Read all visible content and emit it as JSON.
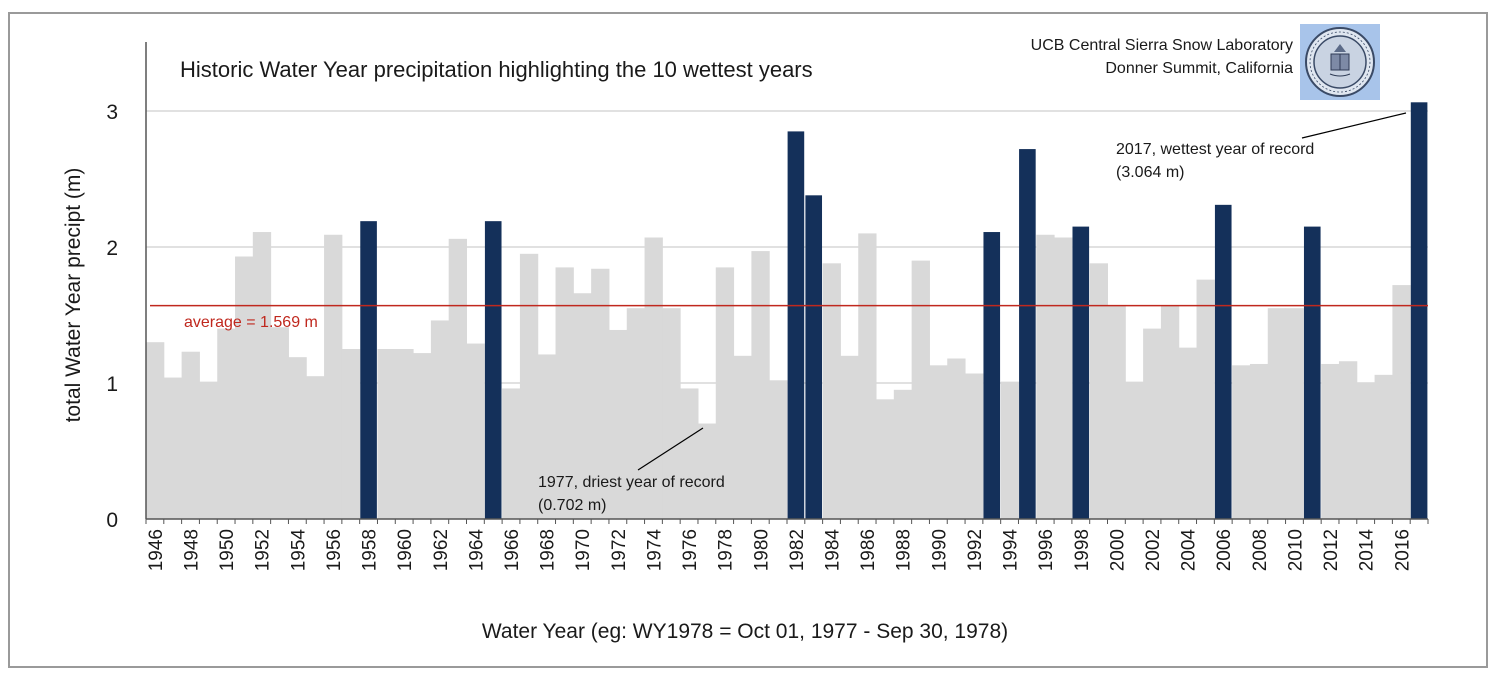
{
  "chart_data": {
    "type": "bar",
    "title": "Historic Water Year precipitation highlighting the 10 wettest years",
    "credit": [
      "UCB Central Sierra Snow Laboratory",
      "Donner Summit, California"
    ],
    "xlabel": "Water Year (eg: WY1978 = Oct 01, 1977 - Sep 30, 1978)",
    "ylabel": "total Water Year precipt (m)",
    "ylim": [
      0,
      3.5
    ],
    "yticks": [
      0,
      1,
      2,
      3
    ],
    "xticks": [
      "1946",
      "1948",
      "1950",
      "1952",
      "1954",
      "1956",
      "1958",
      "1960",
      "1962",
      "1964",
      "1966",
      "1968",
      "1970",
      "1972",
      "1974",
      "1976",
      "1978",
      "1980",
      "1982",
      "1984",
      "1986",
      "1988",
      "1990",
      "1992",
      "1994",
      "1996",
      "1998",
      "2000",
      "2002",
      "2004",
      "2006",
      "2008",
      "2010",
      "2012",
      "2014",
      "2016"
    ],
    "categories": [
      1946,
      1947,
      1948,
      1949,
      1950,
      1951,
      1952,
      1953,
      1954,
      1955,
      1956,
      1957,
      1958,
      1959,
      1960,
      1961,
      1962,
      1963,
      1964,
      1965,
      1966,
      1967,
      1968,
      1969,
      1970,
      1971,
      1972,
      1973,
      1974,
      1975,
      1976,
      1977,
      1978,
      1979,
      1980,
      1981,
      1982,
      1983,
      1984,
      1985,
      1986,
      1987,
      1988,
      1989,
      1990,
      1991,
      1992,
      1993,
      1994,
      1995,
      1996,
      1997,
      1998,
      1999,
      2000,
      2001,
      2002,
      2003,
      2004,
      2005,
      2006,
      2007,
      2008,
      2009,
      2010,
      2011,
      2012,
      2013,
      2014,
      2015,
      2016,
      2017
    ],
    "values": [
      1.3,
      1.04,
      1.23,
      1.01,
      1.4,
      1.93,
      2.11,
      1.41,
      1.19,
      1.05,
      2.09,
      1.25,
      2.19,
      1.25,
      1.25,
      1.22,
      1.46,
      2.06,
      1.29,
      2.19,
      0.96,
      1.95,
      1.21,
      1.85,
      1.66,
      1.84,
      1.39,
      1.55,
      2.07,
      1.55,
      0.96,
      0.702,
      1.85,
      1.2,
      1.97,
      1.02,
      2.85,
      2.38,
      1.88,
      1.2,
      2.1,
      0.88,
      0.95,
      1.9,
      1.13,
      1.18,
      1.07,
      2.11,
      1.01,
      2.72,
      2.09,
      2.07,
      2.15,
      1.88,
      1.57,
      1.01,
      1.4,
      1.57,
      1.26,
      1.76,
      2.31,
      1.13,
      1.14,
      1.55,
      1.55,
      2.15,
      1.14,
      1.16,
      1.0,
      1.06,
      1.72,
      3.064
    ],
    "highlight_years": [
      1958,
      1965,
      1982,
      1983,
      1993,
      1995,
      1998,
      2006,
      2011,
      2017
    ],
    "average": 1.569,
    "average_label": "average = 1.569 m",
    "annotations": {
      "driest": [
        "1977, driest year of record",
        "(0.702 m)"
      ],
      "wettest": [
        "2017, wettest year of record",
        "(3.064 m)"
      ]
    },
    "colors": {
      "bar": "#d9d9d9",
      "highlight": "#14305a",
      "average": "#c0281e",
      "grid": "#cfcfcf",
      "axis": "#555555"
    },
    "grid": true
  }
}
